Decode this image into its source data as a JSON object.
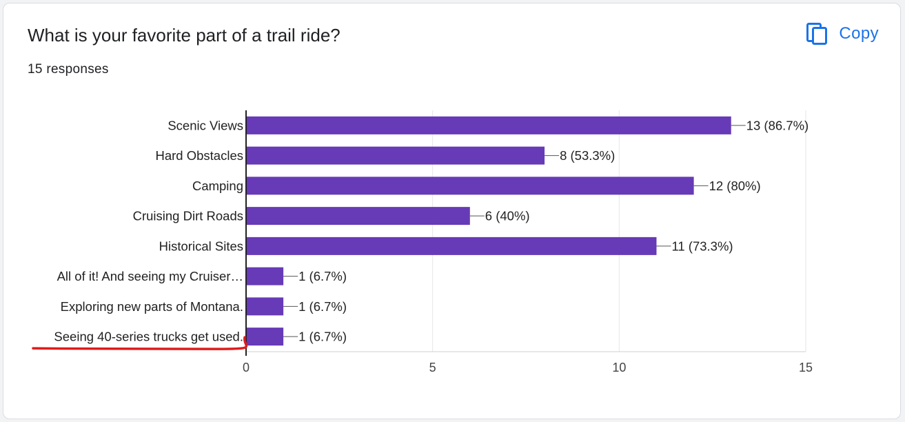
{
  "header": {
    "question": "What is your favorite part of a trail ride?",
    "responses": "15 responses",
    "copy_label": "Copy"
  },
  "icons": {
    "copy": "copy-icon"
  },
  "colors": {
    "bar": "#673ab7",
    "accent": "#1a73e8",
    "annotation": "#e01b1b"
  },
  "chart_data": {
    "type": "bar",
    "orientation": "horizontal",
    "categories": [
      "Scenic Views",
      "Hard Obstacles",
      "Camping",
      "Cruising Dirt Roads",
      "Historical Sites",
      "All of it! And seeing my Cruiser…",
      "Exploring new parts of Montana.",
      "Seeing 40-series trucks get used."
    ],
    "values": [
      13,
      8,
      12,
      6,
      11,
      1,
      1,
      1
    ],
    "data_labels": [
      "13 (86.7%)",
      "8 (53.3%)",
      "12 (80%)",
      "6 (40%)",
      "11 (73.3%)",
      "1 (6.7%)",
      "1 (6.7%)",
      "1 (6.7%)"
    ],
    "xlim": [
      0,
      15
    ],
    "xticks": [
      0,
      5,
      10,
      15
    ],
    "grid": true,
    "highlighted_category": "Seeing 40-series trucks get used."
  }
}
